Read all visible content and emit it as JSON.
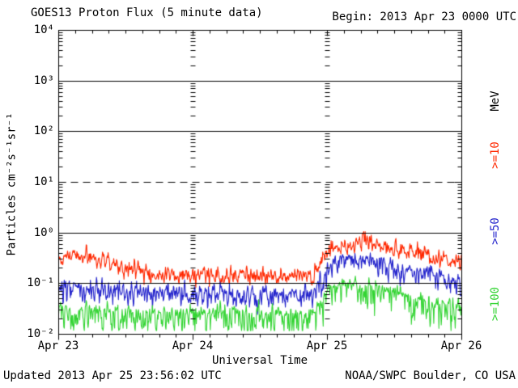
{
  "header": {
    "title": "GOES13 Proton Flux (5 minute data)",
    "begin_label": "Begin: 2013 Apr 23 0000 UTC"
  },
  "footer": {
    "updated": "Updated 2013 Apr 25 23:56:02 UTC",
    "source": "NOAA/SWPC Boulder, CO USA"
  },
  "chart_data": {
    "type": "line",
    "title": "GOES13 Proton Flux (5 minute data)",
    "begin": "2013 Apr 23 0000 UTC",
    "updated": "2013 Apr 25 23:56:02 UTC",
    "xlabel": "Universal Time",
    "ylabel": "Particles cm⁻²s⁻¹sr⁻¹",
    "x_range_hours": [
      0,
      72
    ],
    "x_tick_labels": [
      "Apr 23",
      "Apr 24",
      "Apr 25",
      "Apr 26"
    ],
    "x_minor_tick_hours": 3,
    "y_scale": "log10",
    "y_log_range": [
      -2,
      4
    ],
    "y_tick_labels": [
      "10⁴",
      "10³",
      "10²",
      "10¹",
      "10⁰",
      "10⁻¹",
      "10⁻²"
    ],
    "grid": {
      "solid_hlines_log": [
        3,
        2,
        0,
        -1
      ],
      "dashed_hlines_log": [
        1
      ],
      "day_boundary_tick_columns_hours": [
        24,
        48
      ]
    },
    "legend": {
      "unit_label": "MeV",
      "entries": [
        {
          "label": ">=10",
          "color": "#ff2800"
        },
        {
          "label": ">=50",
          "color": "#2424cc"
        },
        {
          "label": ">=100",
          "color": "#33d433"
        }
      ]
    },
    "sample_interval_minutes": 5,
    "flux_floor": 0.0118,
    "series": [
      {
        "name": ">=10 MeV",
        "color": "#ff2800",
        "noise_up_log": 0.1,
        "noise_down_log": 0.1,
        "spike_prob": 0.02,
        "spike_amp_log": 0.15,
        "seed": 1337,
        "keypoints_hour_flux": [
          [
            0,
            0.32
          ],
          [
            2,
            0.38
          ],
          [
            5,
            0.35
          ],
          [
            9,
            0.25
          ],
          [
            14,
            0.19
          ],
          [
            18,
            0.16
          ],
          [
            24,
            0.15
          ],
          [
            32,
            0.15
          ],
          [
            40,
            0.14
          ],
          [
            45.5,
            0.14
          ],
          [
            46.5,
            0.22
          ],
          [
            47.5,
            0.4
          ],
          [
            49,
            0.52
          ],
          [
            51,
            0.58
          ],
          [
            54,
            0.68
          ],
          [
            56,
            0.62
          ],
          [
            59,
            0.5
          ],
          [
            63,
            0.42
          ],
          [
            67,
            0.33
          ],
          [
            72,
            0.28
          ]
        ]
      },
      {
        "name": ">=50 MeV",
        "color": "#2424cc",
        "noise_up_log": 0.11,
        "noise_down_log": 0.17,
        "spike_prob": 0.015,
        "spike_amp_log": 0.15,
        "seed": 2474,
        "keypoints_hour_flux": [
          [
            0,
            0.083
          ],
          [
            6,
            0.076
          ],
          [
            12,
            0.066
          ],
          [
            24,
            0.063
          ],
          [
            36,
            0.06
          ],
          [
            45.5,
            0.063
          ],
          [
            47,
            0.12
          ],
          [
            48.5,
            0.21
          ],
          [
            50,
            0.26
          ],
          [
            52,
            0.29
          ],
          [
            55,
            0.3
          ],
          [
            58,
            0.24
          ],
          [
            62,
            0.18
          ],
          [
            66,
            0.15
          ],
          [
            72,
            0.11
          ]
        ]
      },
      {
        "name": ">=100 MeV",
        "color": "#33d433",
        "noise_up_log": 0.09,
        "noise_down_log": 0.26,
        "spike_prob": 0.04,
        "spike_amp_log": 0.22,
        "seed": 3999,
        "keypoints_hour_flux": [
          [
            0,
            0.03
          ],
          [
            8,
            0.028
          ],
          [
            16,
            0.025
          ],
          [
            28,
            0.025
          ],
          [
            40,
            0.024
          ],
          [
            45.8,
            0.025
          ],
          [
            47,
            0.048
          ],
          [
            48.5,
            0.08
          ],
          [
            50,
            0.088
          ],
          [
            53,
            0.09
          ],
          [
            56,
            0.085
          ],
          [
            59,
            0.07
          ],
          [
            63,
            0.052
          ],
          [
            67,
            0.04
          ],
          [
            72,
            0.033
          ]
        ]
      }
    ]
  }
}
